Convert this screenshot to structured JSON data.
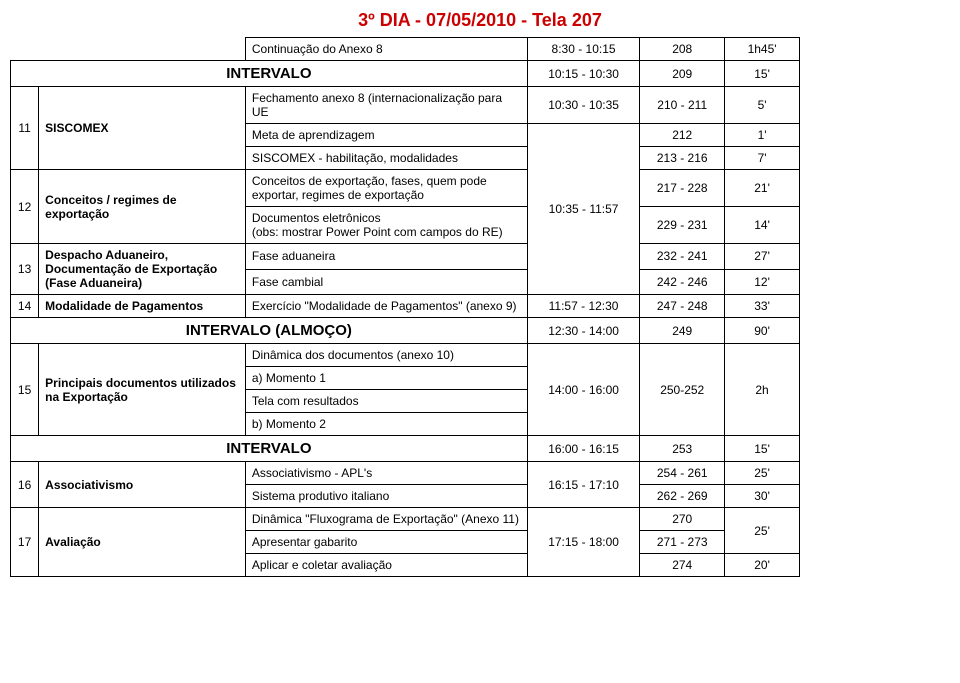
{
  "title": "3º DIA - 07/05/2010 -  Tela 207",
  "colors": {
    "title": "#cc0000",
    "border": "#000000",
    "bg": "#ffffff"
  },
  "rows": [
    {
      "desc": "Continuação do Anexo 8",
      "time": "8:30 - 10:15",
      "tela": "208",
      "dur": "1h45'"
    },
    {
      "desc_label": "INTERVALO",
      "time": "10:15 - 10:30",
      "tela": "209",
      "dur": "15'"
    },
    {
      "num": "11",
      "topic": "SISCOMEX",
      "sub": [
        {
          "desc": "Fechamento anexo 8 (internacionalização para UE",
          "time": "10:30 - 10:35",
          "tela": "210 - 211",
          "dur": "5'"
        },
        {
          "desc": "Meta de aprendizagem",
          "tela": "212",
          "dur": "1'"
        },
        {
          "desc": "SISCOMEX - habilitação, modalidades",
          "tela": "213 - 216",
          "dur": "7'"
        }
      ]
    },
    {
      "num": "12",
      "topic": "Conceitos / regimes de exportação",
      "sub": [
        {
          "desc": "Conceitos de exportação, fases, quem pode exportar, regimes de exportação",
          "tela": "217 - 228",
          "dur": "21'"
        },
        {
          "desc": "Documentos eletrônicos",
          "time": "10:35 - 11:57",
          "tela": "229 - 231",
          "dur": "14'"
        },
        {
          "desc": "(obs: mostrar Power Point com campos do RE)"
        }
      ]
    },
    {
      "num": "13",
      "topic": "Despacho Aduaneiro, Documentação de Exportação (Fase Aduaneira)",
      "sub": [
        {
          "desc": "Fase aduaneira",
          "tela": "232 - 241",
          "dur": "27'"
        },
        {
          "desc": "Fase cambial",
          "tela": "242 - 246",
          "dur": "12'"
        }
      ]
    },
    {
      "num": "14",
      "topic": "Modalidade de Pagamentos",
      "sub": [
        {
          "desc": "Exercício \"Modalidade de Pagamentos\" (anexo 9)",
          "time": "11:57 - 12:30",
          "tela": "247 - 248",
          "dur": "33'"
        }
      ]
    },
    {
      "desc_label": "INTERVALO (ALMOÇO)",
      "time": "12:30 - 14:00",
      "tela": "249",
      "dur": "90'"
    },
    {
      "num": "15",
      "topic": "Principais documentos utilizados na Exportação",
      "sub": [
        {
          "desc": "Dinâmica dos documentos (anexo 10)"
        },
        {
          "desc": "a) Momento 1",
          "time": "14:00 - 16:00",
          "tela": "250-252",
          "dur": "2h"
        },
        {
          "desc": "Tela com resultados"
        },
        {
          "desc": "b) Momento 2"
        }
      ]
    },
    {
      "desc_label": "INTERVALO",
      "time": "16:00 - 16:15",
      "tela": "253",
      "dur": "15'"
    },
    {
      "num": "16",
      "topic": "Associativismo",
      "sub": [
        {
          "desc": "Associativismo - APL's",
          "time": "16:15 - 17:10",
          "tela": "254 - 261",
          "dur": "25'"
        },
        {
          "desc": "Sistema produtivo italiano",
          "tela": "262 - 269",
          "dur": "30'"
        }
      ]
    },
    {
      "num": "17",
      "topic": "Avaliação",
      "sub": [
        {
          "desc": "Dinâmica \"Fluxograma de Exportação\" (Anexo 11)",
          "tela": "270",
          "dur": "25'"
        },
        {
          "desc": "Apresentar gabarito",
          "time": "17:15 - 18:00",
          "tela": "271 - 273"
        },
        {
          "desc": "Aplicar e coletar avaliação",
          "tela": "274",
          "dur": "20'"
        }
      ]
    }
  ]
}
